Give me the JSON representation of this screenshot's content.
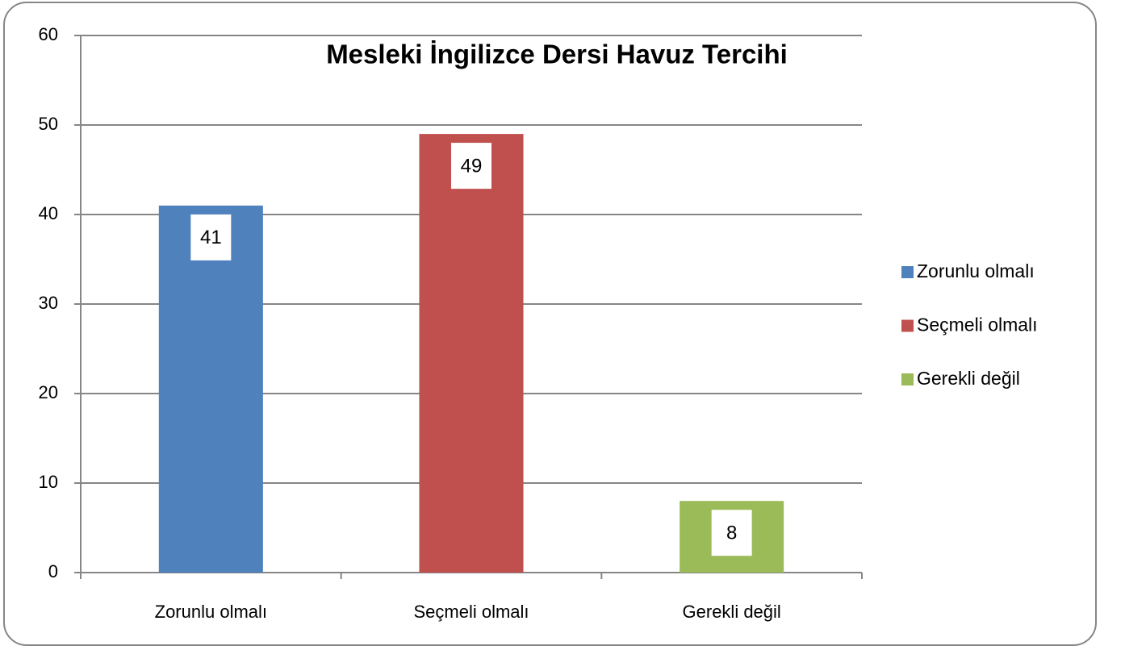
{
  "chart_data": {
    "type": "bar",
    "title": "Mesleki İngilizce Dersi Havuz Tercihi",
    "categories": [
      "Zorunlu olmalı",
      "Seçmeli olmalı",
      "Gerekli değil"
    ],
    "values": [
      41,
      49,
      8
    ],
    "colors": [
      "#4f81bd",
      "#c0504d",
      "#9bbb59"
    ],
    "ylim": [
      0,
      60
    ],
    "yticks": [
      0,
      10,
      20,
      30,
      40,
      50,
      60
    ],
    "grid": true,
    "legend": "right"
  }
}
